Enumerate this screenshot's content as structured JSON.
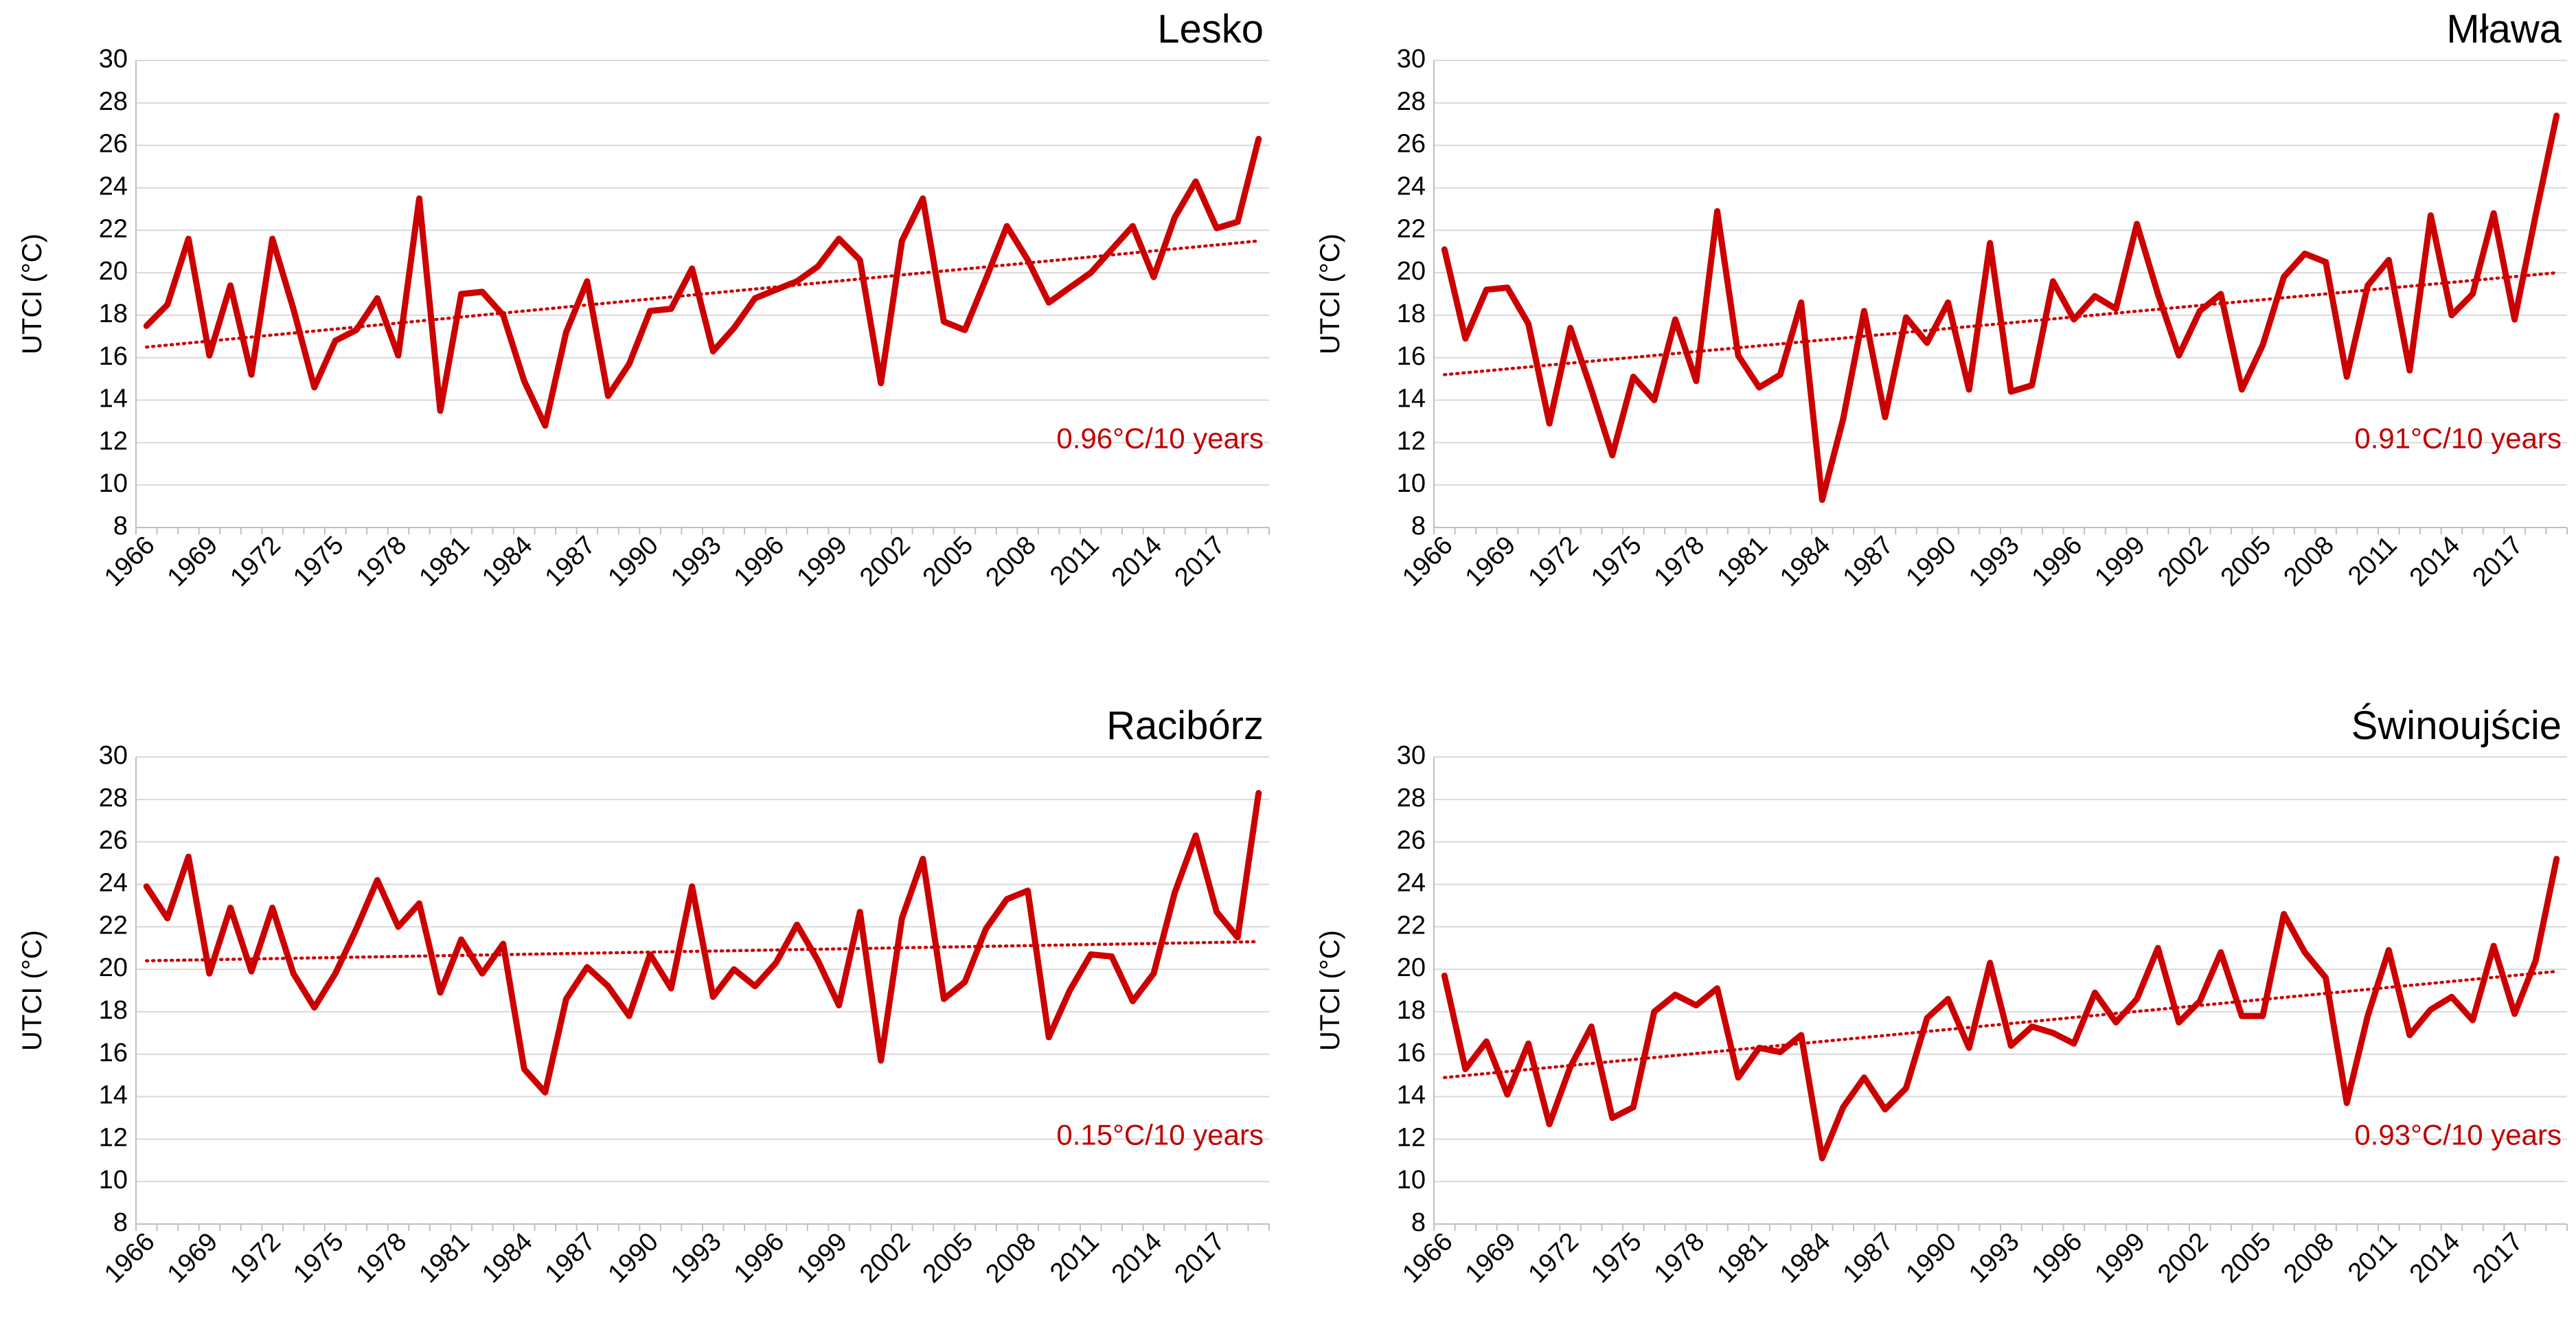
{
  "colors": {
    "series": "#cc0000",
    "trend": "#cc0000",
    "label": "#c00000",
    "grid": "#d9d9d9"
  },
  "chart_data": [
    {
      "type": "line",
      "title": "Lesko",
      "ylabel": "UTCI (°C)",
      "ylim": [
        8,
        30
      ],
      "yticks": [
        "8",
        "10",
        "12",
        "14",
        "16",
        "18",
        "20",
        "22",
        "24",
        "26",
        "28",
        "30"
      ],
      "xticks": [
        "1966",
        "1969",
        "1972",
        "1975",
        "1978",
        "1981",
        "1984",
        "1987",
        "1990",
        "1993",
        "1996",
        "1999",
        "2002",
        "2005",
        "2008",
        "2011",
        "2014",
        "2017"
      ],
      "x_start": 1966,
      "values": [
        17.5,
        18.5,
        21.6,
        16.1,
        19.4,
        15.2,
        21.6,
        18.3,
        14.6,
        16.8,
        17.3,
        18.8,
        16.1,
        23.5,
        13.5,
        19.0,
        19.1,
        18.0,
        14.9,
        12.8,
        17.2,
        19.6,
        14.2,
        15.7,
        18.2,
        18.3,
        20.2,
        16.3,
        17.4,
        18.8,
        19.2,
        19.6,
        20.3,
        21.6,
        20.6,
        14.8,
        21.5,
        23.5,
        17.7,
        17.3,
        19.7,
        22.2,
        20.6,
        18.6,
        19.3,
        20.0,
        21.1,
        22.2,
        19.8,
        22.6,
        24.3,
        22.1,
        22.4,
        26.3
      ],
      "trend": {
        "label": "0.96°C/10 years",
        "start": 16.5,
        "end": 21.5
      }
    },
    {
      "type": "line",
      "title": "Mława",
      "ylabel": "UTCI (°C)",
      "ylim": [
        8,
        30
      ],
      "yticks": [
        "8",
        "10",
        "12",
        "14",
        "16",
        "18",
        "20",
        "22",
        "24",
        "26",
        "28",
        "30"
      ],
      "xticks": [
        "1966",
        "1969",
        "1972",
        "1975",
        "1978",
        "1981",
        "1984",
        "1987",
        "1990",
        "1993",
        "1996",
        "1999",
        "2002",
        "2005",
        "2008",
        "2011",
        "2014",
        "2017"
      ],
      "x_start": 1966,
      "values": [
        21.1,
        16.9,
        19.2,
        19.3,
        17.6,
        12.9,
        17.4,
        14.5,
        11.4,
        15.1,
        14.0,
        17.8,
        14.9,
        22.9,
        16.1,
        14.6,
        15.2,
        18.6,
        9.3,
        13.1,
        18.2,
        13.2,
        17.9,
        16.7,
        18.6,
        14.5,
        21.4,
        14.4,
        14.7,
        19.6,
        17.8,
        18.9,
        18.3,
        22.3,
        19.0,
        16.1,
        18.2,
        19.0,
        14.5,
        16.6,
        19.8,
        20.9,
        20.5,
        15.1,
        19.4,
        20.6,
        15.4,
        22.7,
        18.0,
        19.0,
        22.8,
        17.8,
        22.7,
        27.4
      ],
      "trend": {
        "label": "0.91°C/10 years",
        "start": 15.2,
        "end": 20.0
      }
    },
    {
      "type": "line",
      "title": "Racibórz",
      "ylabel": "UTCI (°C)",
      "ylim": [
        8,
        30
      ],
      "yticks": [
        "8",
        "10",
        "12",
        "14",
        "16",
        "18",
        "20",
        "22",
        "24",
        "26",
        "28",
        "30"
      ],
      "xticks": [
        "1966",
        "1969",
        "1972",
        "1975",
        "1978",
        "1981",
        "1984",
        "1987",
        "1990",
        "1993",
        "1996",
        "1999",
        "2002",
        "2005",
        "2008",
        "2011",
        "2014",
        "2017"
      ],
      "x_start": 1966,
      "values": [
        23.9,
        22.4,
        25.3,
        19.8,
        22.9,
        19.9,
        22.9,
        19.8,
        18.2,
        19.8,
        21.9,
        24.2,
        22.0,
        23.1,
        18.9,
        21.4,
        19.8,
        21.2,
        15.3,
        14.2,
        18.6,
        20.1,
        19.2,
        17.8,
        20.7,
        19.1,
        23.9,
        18.7,
        20.0,
        19.2,
        20.3,
        22.1,
        20.4,
        18.3,
        22.7,
        15.7,
        22.4,
        25.2,
        18.6,
        19.4,
        21.9,
        23.3,
        23.7,
        16.8,
        19.0,
        20.7,
        20.6,
        18.5,
        19.8,
        23.6,
        26.3,
        22.7,
        21.5,
        28.3
      ],
      "trend": {
        "label": "0.15°C/10 years",
        "start": 20.4,
        "end": 21.3
      }
    },
    {
      "type": "line",
      "title": "Świnoujście",
      "ylabel": "UTCI (°C)",
      "ylim": [
        8,
        30
      ],
      "yticks": [
        "8",
        "10",
        "12",
        "14",
        "16",
        "18",
        "20",
        "22",
        "24",
        "26",
        "28",
        "30"
      ],
      "xticks": [
        "1966",
        "1969",
        "1972",
        "1975",
        "1978",
        "1981",
        "1984",
        "1987",
        "1990",
        "1993",
        "1996",
        "1999",
        "2002",
        "2005",
        "2008",
        "2011",
        "2014",
        "2017"
      ],
      "x_start": 1966,
      "values": [
        19.7,
        15.3,
        16.6,
        14.1,
        16.5,
        12.7,
        15.4,
        17.3,
        13.0,
        13.5,
        18.0,
        18.8,
        18.3,
        19.1,
        14.9,
        16.3,
        16.1,
        16.9,
        11.1,
        13.5,
        14.9,
        13.4,
        14.4,
        17.7,
        18.6,
        16.3,
        20.3,
        16.4,
        17.3,
        17.0,
        16.5,
        18.9,
        17.5,
        18.6,
        21.0,
        17.5,
        18.5,
        20.8,
        17.8,
        17.8,
        22.6,
        20.8,
        19.6,
        13.7,
        17.8,
        20.9,
        16.9,
        18.1,
        18.7,
        17.6,
        21.1,
        17.9,
        20.4,
        25.2
      ],
      "trend": {
        "label": "0.93°C/10 years",
        "start": 14.9,
        "end": 19.9
      }
    }
  ]
}
